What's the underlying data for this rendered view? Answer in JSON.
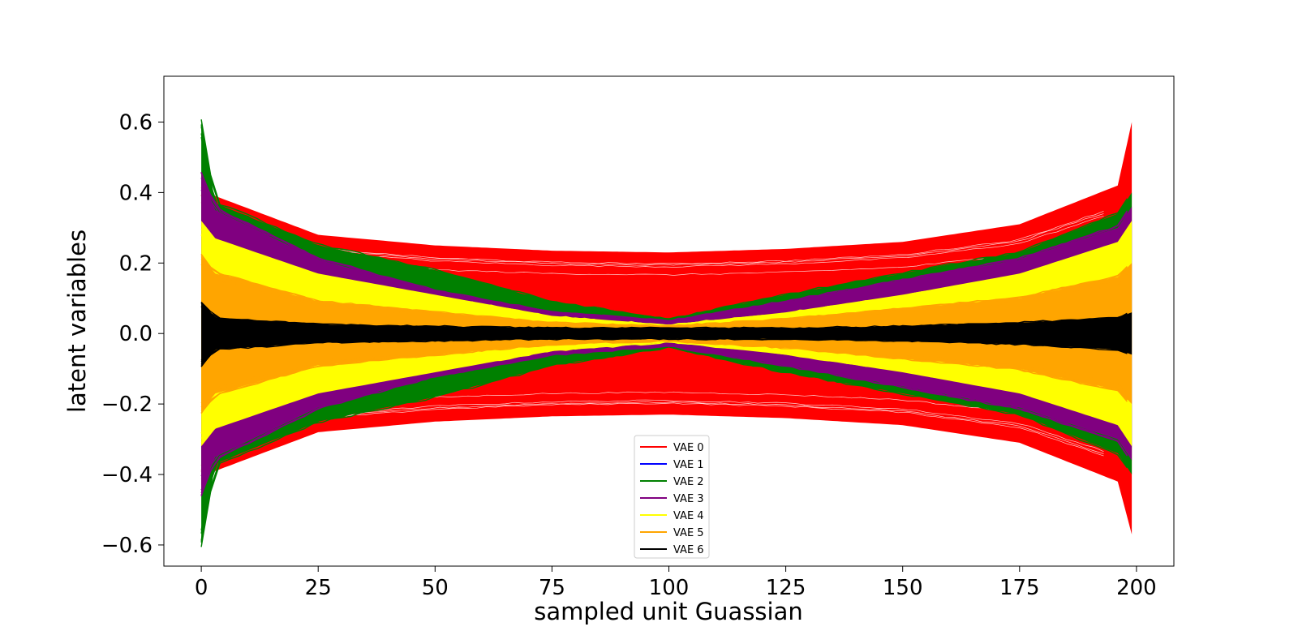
{
  "chart_data": {
    "type": "line",
    "title": "",
    "xlabel": "sampled unit Guassian",
    "ylabel": "latent variables",
    "xlim": [
      -8,
      208
    ],
    "ylim": [
      -0.66,
      0.73
    ],
    "xticks": [
      0,
      25,
      50,
      75,
      100,
      125,
      150,
      175,
      200
    ],
    "xtick_labels": [
      "0",
      "25",
      "50",
      "75",
      "100",
      "125",
      "150",
      "175",
      "200"
    ],
    "yticks": [
      0.6,
      0.4,
      0.2,
      0.0,
      -0.2,
      -0.4,
      -0.6
    ],
    "ytick_labels": [
      "0.6",
      "0.4",
      "0.2",
      "0.0",
      "−0.2",
      "−0.4",
      "−0.6"
    ],
    "grid": false,
    "legend_position": "lower-center",
    "x_range": [
      0,
      199
    ],
    "series": [
      {
        "name": "VAE 0",
        "color": "#ff0000",
        "band": {
          "x": [
            0,
            3,
            25,
            50,
            75,
            100,
            125,
            150,
            175,
            196,
            199
          ],
          "upper": [
            0.43,
            0.39,
            0.28,
            0.25,
            0.235,
            0.23,
            0.24,
            0.26,
            0.31,
            0.42,
            0.6
          ],
          "lower": [
            -0.43,
            -0.39,
            -0.28,
            -0.25,
            -0.235,
            -0.23,
            -0.24,
            -0.26,
            -0.31,
            -0.42,
            -0.57
          ]
        }
      },
      {
        "name": "VAE 1",
        "color": "#0000ff",
        "band": null
      },
      {
        "name": "VAE 2",
        "color": "#008000",
        "band": {
          "x": [
            0,
            3,
            25,
            50,
            75,
            100,
            125,
            150,
            175,
            196,
            199
          ],
          "upper": [
            0.6,
            0.37,
            0.25,
            0.18,
            0.09,
            0.04,
            0.11,
            0.17,
            0.23,
            0.34,
            0.4
          ],
          "lower": [
            -0.6,
            -0.37,
            -0.25,
            -0.18,
            -0.09,
            -0.04,
            -0.11,
            -0.17,
            -0.23,
            -0.34,
            -0.4
          ]
        }
      },
      {
        "name": "VAE 3",
        "color": "#800080",
        "band": {
          "x": [
            0,
            3,
            25,
            50,
            75,
            100,
            125,
            150,
            175,
            196,
            199
          ],
          "upper": [
            0.45,
            0.35,
            0.21,
            0.12,
            0.06,
            0.035,
            0.09,
            0.15,
            0.21,
            0.3,
            0.36
          ],
          "lower": [
            -0.45,
            -0.35,
            -0.21,
            -0.12,
            -0.06,
            -0.035,
            -0.09,
            -0.15,
            -0.21,
            -0.3,
            -0.36
          ]
        }
      },
      {
        "name": "VAE 4",
        "color": "#ffff00",
        "band": {
          "x": [
            0,
            3,
            25,
            50,
            75,
            100,
            125,
            150,
            175,
            196,
            199
          ],
          "upper": [
            0.32,
            0.27,
            0.17,
            0.11,
            0.05,
            0.025,
            0.06,
            0.11,
            0.17,
            0.26,
            0.32
          ],
          "lower": [
            -0.32,
            -0.27,
            -0.17,
            -0.11,
            -0.05,
            -0.025,
            -0.06,
            -0.11,
            -0.17,
            -0.26,
            -0.32
          ]
        }
      },
      {
        "name": "VAE 5",
        "color": "#ffa500",
        "band": {
          "x": [
            0,
            3,
            25,
            50,
            75,
            100,
            125,
            150,
            175,
            196,
            199
          ],
          "upper": [
            0.22,
            0.17,
            0.09,
            0.06,
            0.03,
            0.02,
            0.04,
            0.07,
            0.1,
            0.16,
            0.2
          ],
          "lower": [
            -0.22,
            -0.17,
            -0.09,
            -0.06,
            -0.03,
            -0.02,
            -0.04,
            -0.07,
            -0.1,
            -0.16,
            -0.2
          ]
        }
      },
      {
        "name": "VAE 6",
        "color": "#000000",
        "band": {
          "x": [
            0,
            3,
            25,
            50,
            75,
            100,
            125,
            150,
            175,
            196,
            199
          ],
          "upper": [
            0.09,
            0.045,
            0.025,
            0.02,
            0.015,
            0.015,
            0.015,
            0.02,
            0.03,
            0.045,
            0.06
          ],
          "lower": [
            -0.09,
            -0.045,
            -0.025,
            -0.02,
            -0.015,
            -0.015,
            -0.015,
            -0.02,
            -0.03,
            -0.045,
            -0.06
          ]
        }
      }
    ]
  }
}
